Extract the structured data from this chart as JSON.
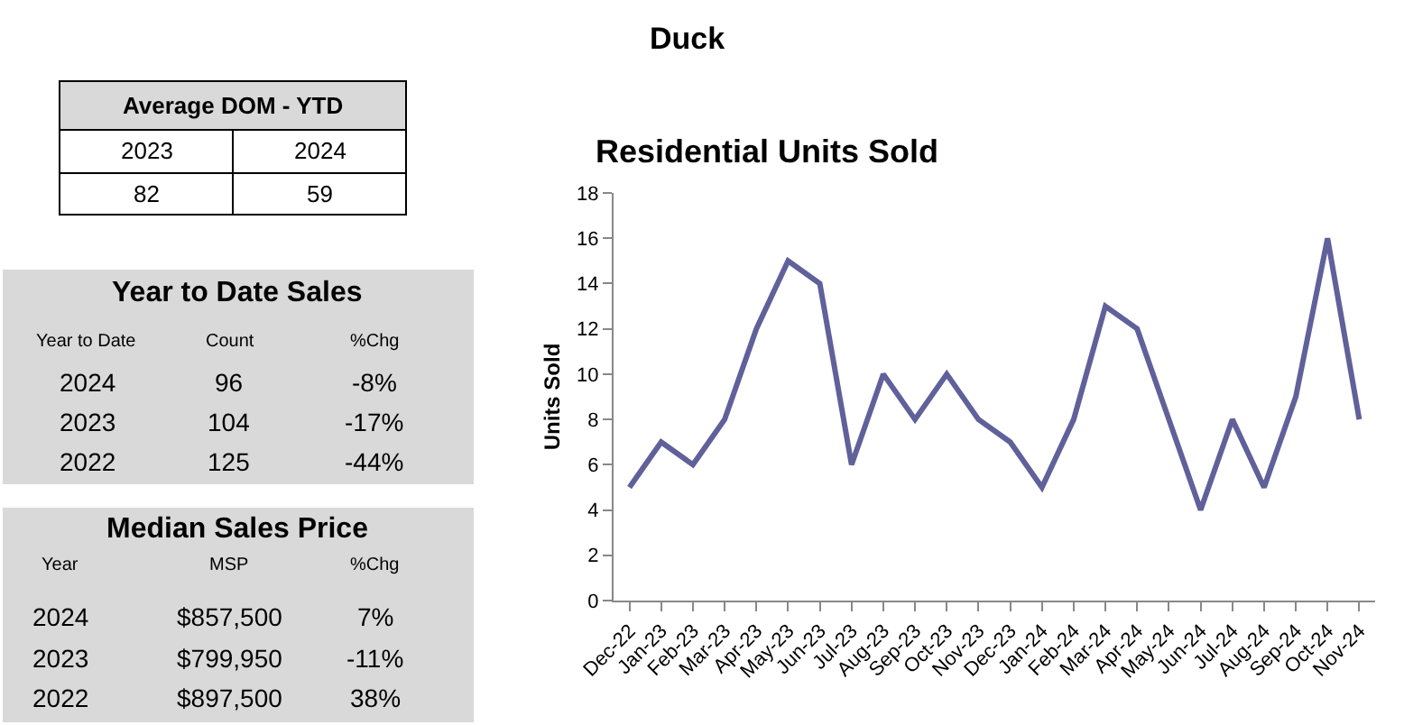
{
  "chart_data": [
    {
      "type": "other",
      "title": "Duck",
      "annotations": [
        "Average DOM - YTD",
        "2023",
        "2024",
        "82",
        "59",
        "Year to Date Sales",
        "Year to Date",
        "Count",
        "%Chg",
        "2024",
        "96",
        "-8%",
        "2023",
        "104",
        "-17%",
        "2022",
        "125",
        "-44%",
        "Median Sales Price",
        "Year",
        "MSP",
        "%Chg",
        "2024",
        "$857,500",
        "7%",
        "2023",
        "$799,950",
        "-11%",
        "2022",
        "$897,500",
        "38%"
      ]
    },
    {
      "type": "line",
      "title": "Residential Units Sold",
      "ylabel": "Units Sold",
      "categories": [
        "Dec-22",
        "Jan-23",
        "Feb-23",
        "Mar-23",
        "Apr-23",
        "May-23",
        "Jun-23",
        "Jul-23",
        "Aug-23",
        "Sep-23",
        "Oct-23",
        "Nov-23",
        "Dec-23",
        "Jan-24",
        "Feb-24",
        "Mar-24",
        "Apr-24",
        "May-24",
        "Jun-24",
        "Jul-24",
        "Aug-24",
        "Sep-24",
        "Oct-24",
        "Nov-24"
      ],
      "series": [
        {
          "color": "#60609a",
          "values": [
            5,
            7,
            6,
            8,
            12,
            15,
            14,
            6,
            10,
            8,
            10,
            8,
            7,
            5,
            8,
            13,
            12,
            8,
            4,
            8,
            5,
            9,
            16,
            8
          ]
        }
      ],
      "ylim": [
        0,
        18
      ],
      "yticks": [
        0,
        2,
        4,
        6,
        8,
        10,
        12,
        14,
        16,
        18
      ],
      "marker": "none",
      "line_style": "solid"
    }
  ]
}
